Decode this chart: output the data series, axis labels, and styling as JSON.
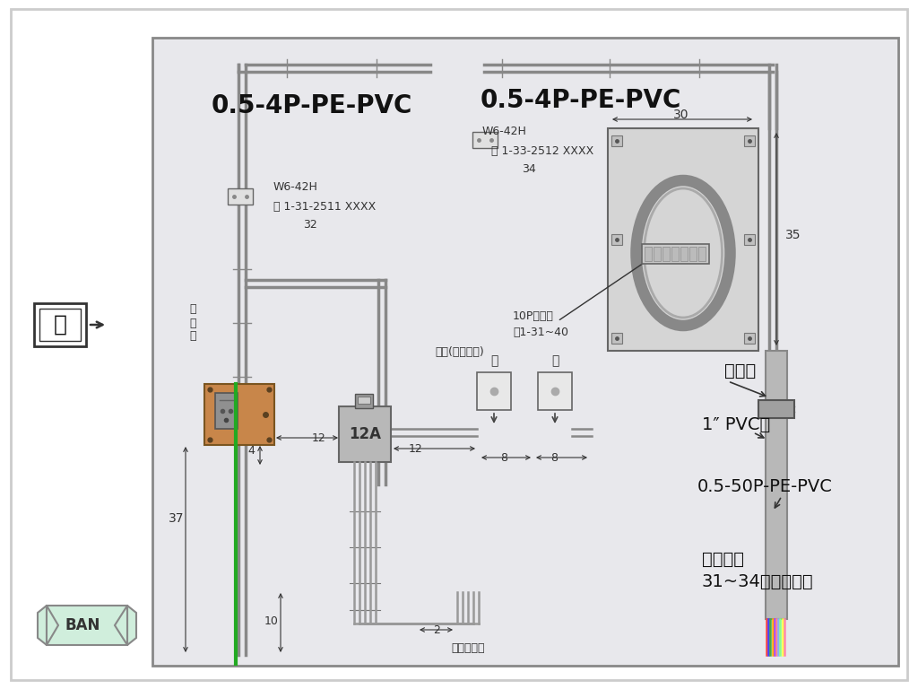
{
  "bg_color": "#f0f0f0",
  "outer_bg": "#ffffff",
  "diagram_bg": "#e8e8e8",
  "title_left": "0.5-4P-PE-PVC",
  "title_right": "0.5-4P-PE-PVC",
  "label_w6_left": "W6-42H",
  "label_conn_left1": "接 1-31-2511 XXXX",
  "label_conn_left2": "32",
  "label_w6_right": "W6-42H",
  "label_conn_right1": "接 1-33-2512 XXXX",
  "label_conn_right2": "34",
  "label_dim_30": "30",
  "label_dim_35": "35",
  "label_terminal": "10P端子板",
  "label_terminal2": "接1-31~40",
  "label_outdoor": "屋\n外\n線",
  "label_fenbel": "分鈴(留乾接點)",
  "label_jia": "甲",
  "label_yi": "乙",
  "label_hgj": "護管夾",
  "label_pvc": "1″ PVC管",
  "label_cable": "0.5-50P-PE-PVC",
  "label_seq": "依序編紮",
  "label_seq2": "31~34對剝皮測試",
  "label_unit": "單位：公分",
  "label_dim_37": "37",
  "label_dim_4": "4",
  "label_dim_10": "10",
  "label_dim_12a": "12",
  "label_dim_12b": "12",
  "label_dim_8a": "8",
  "label_dim_8b": "8",
  "label_dim_2": "2",
  "label_12A": "12A",
  "label_zu": "圖",
  "label_ban": "BAN"
}
